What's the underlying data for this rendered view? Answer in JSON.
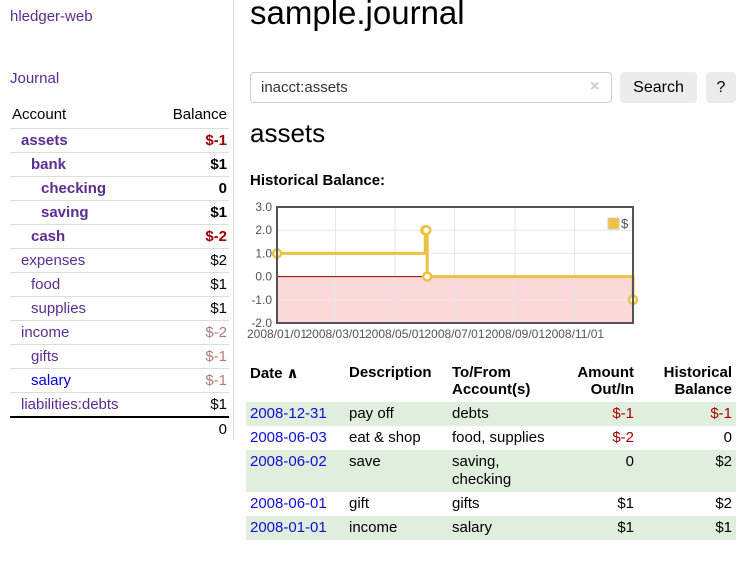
{
  "sidebar": {
    "app_title": "hledger-web",
    "journal_link": "Journal",
    "accounts": {
      "header": {
        "account": "Account",
        "balance": "Balance"
      },
      "rows": [
        {
          "name": "assets",
          "balance": "$-1",
          "depth": 1,
          "strong": true,
          "neg": "strong",
          "blue": false
        },
        {
          "name": "bank",
          "balance": "$1",
          "depth": 2,
          "strong": true,
          "neg": null,
          "blue": false
        },
        {
          "name": "checking",
          "balance": "0",
          "depth": 3,
          "strong": true,
          "neg": null,
          "blue": false
        },
        {
          "name": "saving",
          "balance": "$1",
          "depth": 3,
          "strong": true,
          "neg": null,
          "blue": false
        },
        {
          "name": "cash",
          "balance": "$-2",
          "depth": 2,
          "strong": true,
          "neg": "strong",
          "blue": false
        },
        {
          "name": "expenses",
          "balance": "$2",
          "depth": 1,
          "strong": false,
          "neg": null,
          "blue": false
        },
        {
          "name": "food",
          "balance": "$1",
          "depth": 2,
          "strong": false,
          "neg": null,
          "blue": false
        },
        {
          "name": "supplies",
          "balance": "$1",
          "depth": 2,
          "strong": false,
          "neg": null,
          "blue": false
        },
        {
          "name": "income",
          "balance": "$-2",
          "depth": 1,
          "strong": false,
          "neg": "muted",
          "blue": false
        },
        {
          "name": "gifts",
          "balance": "$-1",
          "depth": 2,
          "strong": false,
          "neg": "muted",
          "blue": false
        },
        {
          "name": "salary",
          "balance": "$-1",
          "depth": 2,
          "strong": false,
          "neg": "muted",
          "blue": true
        },
        {
          "name": "liabilities:debts",
          "balance": "$1",
          "depth": 1,
          "strong": false,
          "neg": null,
          "blue": false
        }
      ],
      "total": "0"
    }
  },
  "main": {
    "title": "sample.journal",
    "search": {
      "value": "inacct:assets",
      "clear_icon": "×",
      "button": "Search",
      "help": "?"
    },
    "account_heading": "assets",
    "chart_title": "Historical Balance:"
  },
  "register": {
    "columns": [
      "Date",
      "Description",
      "To/From Account(s)",
      "Amount Out/In",
      "Historical Balance"
    ],
    "sort_icon": "∧",
    "rows": [
      {
        "date": "2008-12-31",
        "description": "pay off",
        "accounts": "debts",
        "amount": "$-1",
        "balance": "$-1",
        "amount_neg": true,
        "balance_neg": true,
        "shaded": true
      },
      {
        "date": "2008-06-03",
        "description": "eat & shop",
        "accounts": "food, supplies",
        "amount": "$-2",
        "balance": "0",
        "amount_neg": true,
        "balance_neg": false,
        "shaded": false
      },
      {
        "date": "2008-06-02",
        "description": "save",
        "accounts": "saving, checking",
        "amount": "0",
        "balance": "$2",
        "amount_neg": false,
        "balance_neg": false,
        "shaded": true
      },
      {
        "date": "2008-06-01",
        "description": "gift",
        "accounts": "gifts",
        "amount": "$1",
        "balance": "$2",
        "amount_neg": false,
        "balance_neg": false,
        "shaded": false
      },
      {
        "date": "2008-01-01",
        "description": "income",
        "accounts": "salary",
        "amount": "$1",
        "balance": "$1",
        "amount_neg": false,
        "balance_neg": false,
        "shaded": true
      }
    ]
  },
  "chart_data": {
    "type": "line",
    "step": true,
    "title": "Historical Balance:",
    "series": [
      {
        "name": "$",
        "color": "#edc240",
        "points": [
          [
            "2008/01/01",
            1
          ],
          [
            "2008/06/01",
            2
          ],
          [
            "2008/06/02",
            2
          ],
          [
            "2008/06/03",
            0
          ],
          [
            "2008/12/31",
            -1
          ]
        ]
      }
    ],
    "xlim": [
      "2008/01/01",
      "2008/12/31"
    ],
    "ylim": [
      -2,
      3
    ],
    "yticks": [
      "3.0",
      "2.0",
      "1.0",
      "0.0",
      "-1.0",
      "-2.0"
    ],
    "xticks": [
      "2008/01/01",
      "2008/03/01",
      "2008/05/01",
      "2008/07/01",
      "2008/09/01",
      "2008/11/01"
    ],
    "legend": {
      "label": "$",
      "position": "top-right"
    },
    "grid": true,
    "negative_fill": "#fbd9d9",
    "zero_line_color": "#8b0000",
    "border_color": "#545454",
    "grid_color": "#e6e6e6",
    "tick_color": "#545454"
  }
}
